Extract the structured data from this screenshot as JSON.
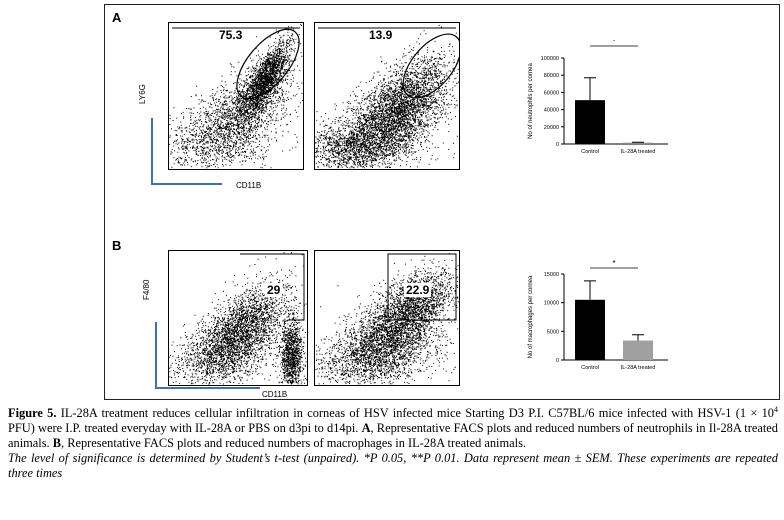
{
  "panel_a": {
    "letter": "A",
    "plot_1": {
      "gate_value": "75.3"
    },
    "plot_2": {
      "gate_value": "13.9"
    },
    "y_axis_label": "LY6G",
    "x_axis_label": "CD11B"
  },
  "panel_b": {
    "letter": "B",
    "plot_1": {
      "gate_value": "29"
    },
    "plot_2": {
      "gate_value": "22.9"
    },
    "y_axis_label": "F4/80",
    "x_axis_label": "CD11B"
  },
  "chart_data": [
    {
      "type": "bar",
      "categories": [
        "Control",
        "IL-28A treated"
      ],
      "values": [
        51000,
        1500
      ],
      "errors": [
        26000,
        500
      ],
      "ylabel": "No of neutrophils per cornea",
      "yticks": [
        "0",
        "20000",
        "40000",
        "60000",
        "80000",
        "100000"
      ],
      "ylim": [
        0,
        100000
      ],
      "significance": "*",
      "colors": [
        "#000000",
        "#888888"
      ]
    },
    {
      "type": "bar",
      "categories": [
        "Control",
        "IL-28A treated"
      ],
      "values": [
        10500,
        3400
      ],
      "errors": [
        3300,
        1000
      ],
      "ylabel": "No of macrophages per cornea",
      "yticks": [
        "0",
        "5000",
        "10000",
        "15000"
      ],
      "ylim": [
        0,
        15000
      ],
      "significance": "*",
      "colors": [
        "#000000",
        "#a0a0a0"
      ]
    }
  ],
  "caption": {
    "figure_label": "Figure 5.",
    "text_1": " IL-28A treatment reduces cellular infiltration in corneas of HSV infected mice Starting D3 P.I. C57BL/6 mice infected with HSV-1 (1 × 10",
    "sup": "4",
    "text_2": " PFU) were I.P. treated everyday with IL-28A or PBS on d3pi to d14pi. ",
    "label_a": "A",
    "text_a": ", Representative FACS plots and reduced numbers of neutrophils in Il-28A treated animals. ",
    "label_b": "B",
    "text_b": ", Representative FACS plots and reduced numbers of macrophages in IL-28A treated animals.",
    "note": "The level of significance is determined by Student’s t-test (unpaired). *P 0.05, **P 0.01. Data represent mean ± SEM. These experiments are repeated three times"
  }
}
